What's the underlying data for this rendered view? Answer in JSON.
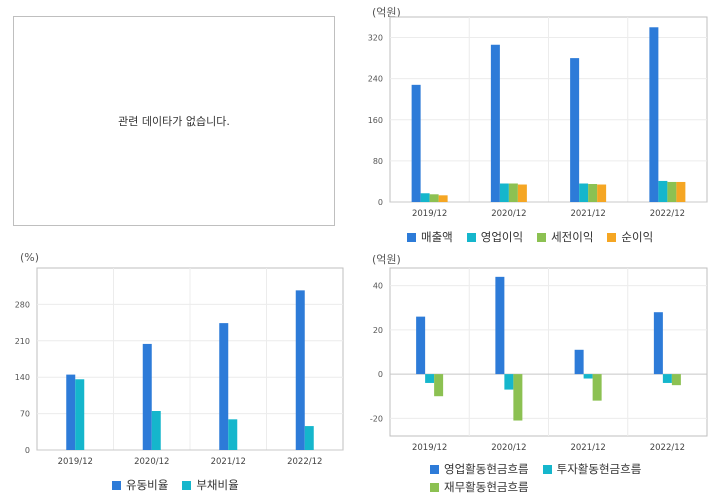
{
  "no_data_panel": {
    "message": "관련 데이타가 없습니다."
  },
  "chart_data": [
    {
      "type": "bar",
      "unit": "(억원)",
      "categories": [
        "2019/12",
        "2020/12",
        "2021/12",
        "2022/12"
      ],
      "ylim": [
        0,
        360
      ],
      "yticks": [
        0,
        80,
        160,
        240,
        320
      ],
      "series": [
        {
          "name": "매출액",
          "color": "#2d7bd8",
          "values": [
            228,
            306,
            280,
            340
          ]
        },
        {
          "name": "영업이익",
          "color": "#15b6cc",
          "values": [
            17,
            36,
            36,
            41
          ]
        },
        {
          "name": "세전이익",
          "color": "#8cc152",
          "values": [
            15,
            36,
            35,
            39
          ]
        },
        {
          "name": "순이익",
          "color": "#f5a623",
          "values": [
            13,
            34,
            34,
            39
          ]
        }
      ],
      "grid": true,
      "legend": "bottom"
    },
    {
      "type": "bar",
      "unit": "(%)",
      "categories": [
        "2019/12",
        "2020/12",
        "2021/12",
        "2022/12"
      ],
      "ylim": [
        0,
        350
      ],
      "yticks": [
        0,
        70,
        140,
        210,
        280
      ],
      "series": [
        {
          "name": "유동비율",
          "color": "#2d7bd8",
          "values": [
            145,
            204,
            244,
            307
          ]
        },
        {
          "name": "부채비율",
          "color": "#15b6cc",
          "values": [
            136,
            75,
            59,
            46
          ]
        }
      ],
      "grid": true,
      "legend": "bottom"
    },
    {
      "type": "bar",
      "unit": "(억원)",
      "categories": [
        "2019/12",
        "2020/12",
        "2021/12",
        "2022/12"
      ],
      "ylim": [
        -28,
        48
      ],
      "yticks": [
        -20,
        0,
        20,
        40
      ],
      "series": [
        {
          "name": "영업활동현금흐름",
          "color": "#2d7bd8",
          "values": [
            26,
            44,
            11,
            28
          ]
        },
        {
          "name": "투자활동현금흐름",
          "color": "#15b6cc",
          "values": [
            -4,
            -7,
            -2,
            -4
          ]
        },
        {
          "name": "재무활동현금흐름",
          "color": "#8cc152",
          "values": [
            -10,
            -21,
            -12,
            -5
          ]
        }
      ],
      "grid": true,
      "legend": "bottom"
    }
  ]
}
